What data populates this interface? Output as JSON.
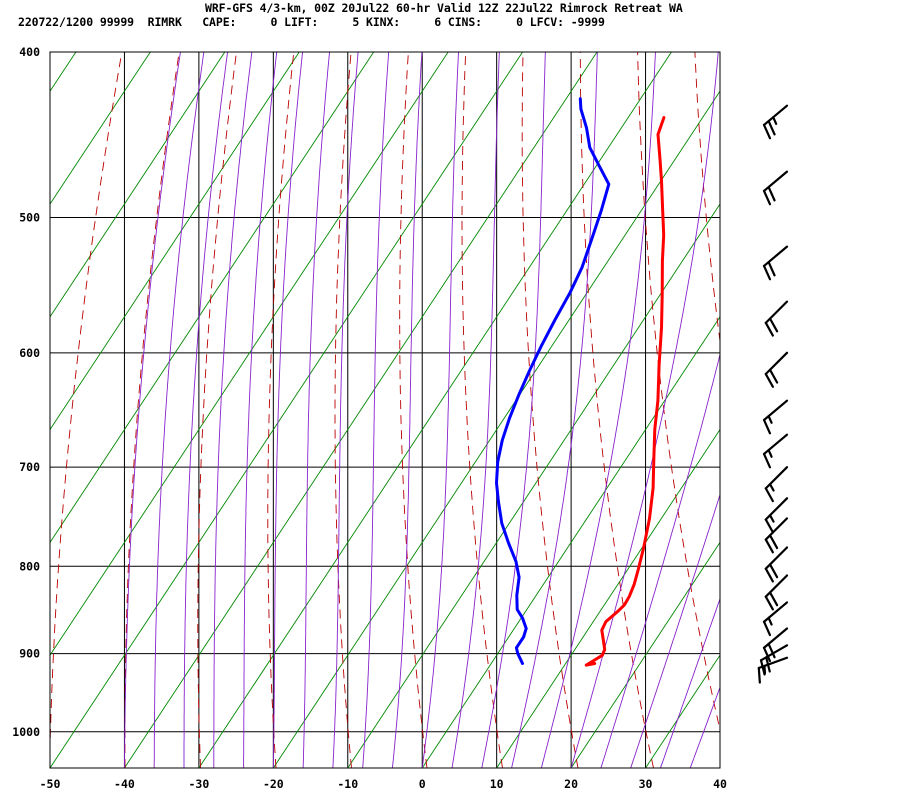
{
  "header": {
    "title": "WRF-GFS 4/3-km, 00Z 20Jul22 60-hr Valid 12Z 22Jul22 Rimrock Retreat WA",
    "indices": "220722/1200 99999  RIMRK   CAPE:     0 LIFT:     5 KINX:     6 CINS:     0 LFCV: -9999"
  },
  "colors": {
    "temperature": "#ff0000",
    "dewpoint": "#0000ff",
    "dry_adiabat": "#bb0000",
    "isotherm_skew": "#008800",
    "moist_adiabat": "#8822cc",
    "grid": "#000000"
  },
  "chart_data": {
    "type": "line",
    "title": "",
    "xlabel": "",
    "ylabel": "",
    "x_ticks": [
      -50,
      -40,
      -30,
      -20,
      -10,
      0,
      10,
      20,
      30,
      40
    ],
    "y_ticks": [
      400,
      500,
      600,
      700,
      800,
      900,
      1000
    ],
    "xlim": [
      -50,
      40
    ],
    "ylim": [
      1050,
      400
    ],
    "y_scale": "log",
    "grid": true,
    "series": [
      {
        "key": "temperature",
        "points": [
          [
            13.9,
            912
          ],
          [
            12.9,
            914
          ],
          [
            14.2,
            902
          ],
          [
            14.0,
            895
          ],
          [
            13.1,
            885
          ],
          [
            11.9,
            872
          ],
          [
            11.7,
            862
          ],
          [
            12.4,
            850
          ],
          [
            12.7,
            843
          ],
          [
            12.6,
            833
          ],
          [
            12.2,
            820
          ],
          [
            11.4,
            803
          ],
          [
            10.2,
            780
          ],
          [
            8.4,
            750
          ],
          [
            6.2,
            720
          ],
          [
            3.5,
            690
          ],
          [
            1.2,
            665
          ],
          [
            -0.9,
            640
          ],
          [
            -3.9,
            610
          ],
          [
            -6.9,
            580
          ],
          [
            -9.7,
            555
          ],
          [
            -12.7,
            530
          ],
          [
            -14.8,
            512
          ],
          [
            -17.3,
            494
          ],
          [
            -19.9,
            476
          ],
          [
            -21.9,
            463
          ],
          [
            -24.5,
            447
          ],
          [
            -25.2,
            437
          ]
        ]
      },
      {
        "key": "dewpoint",
        "points": [
          [
            4.2,
            912
          ],
          [
            2.7,
            900
          ],
          [
            2.0,
            893
          ],
          [
            2.0,
            880
          ],
          [
            1.6,
            870
          ],
          [
            0.2,
            858
          ],
          [
            -1.3,
            848
          ],
          [
            -2.6,
            832
          ],
          [
            -3.9,
            812
          ],
          [
            -5.7,
            795
          ],
          [
            -8.4,
            775
          ],
          [
            -11.0,
            755
          ],
          [
            -13.4,
            733
          ],
          [
            -15.3,
            715
          ],
          [
            -17.0,
            695
          ],
          [
            -18.3,
            675
          ],
          [
            -19.3,
            655
          ],
          [
            -20.1,
            635
          ],
          [
            -20.8,
            615
          ],
          [
            -21.4,
            595
          ],
          [
            -21.9,
            574
          ],
          [
            -22.3,
            553
          ],
          [
            -22.9,
            535
          ],
          [
            -24.1,
            515
          ],
          [
            -25.4,
            495
          ],
          [
            -26.7,
            478
          ],
          [
            -29.7,
            466
          ],
          [
            -32.5,
            455
          ],
          [
            -34.7,
            443
          ],
          [
            -37.1,
            432
          ],
          [
            -38.1,
            426
          ]
        ]
      }
    ],
    "wind_barbs": [
      {
        "p": 430,
        "dir": 230,
        "kt": 25
      },
      {
        "p": 470,
        "dir": 230,
        "kt": 20
      },
      {
        "p": 520,
        "dir": 230,
        "kt": 20
      },
      {
        "p": 560,
        "dir": 225,
        "kt": 20
      },
      {
        "p": 600,
        "dir": 225,
        "kt": 20
      },
      {
        "p": 640,
        "dir": 230,
        "kt": 15
      },
      {
        "p": 670,
        "dir": 230,
        "kt": 15
      },
      {
        "p": 700,
        "dir": 225,
        "kt": 15
      },
      {
        "p": 730,
        "dir": 225,
        "kt": 15
      },
      {
        "p": 750,
        "dir": 225,
        "kt": 20
      },
      {
        "p": 780,
        "dir": 225,
        "kt": 20
      },
      {
        "p": 810,
        "dir": 225,
        "kt": 20
      },
      {
        "p": 840,
        "dir": 230,
        "kt": 15
      },
      {
        "p": 870,
        "dir": 230,
        "kt": 20
      },
      {
        "p": 890,
        "dir": 240,
        "kt": 20
      },
      {
        "p": 905,
        "dir": 250,
        "kt": 15
      }
    ]
  }
}
